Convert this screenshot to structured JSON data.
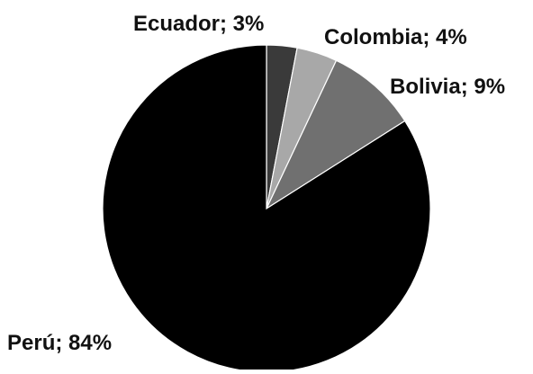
{
  "chart_data": {
    "type": "pie",
    "start_angle_deg": 0,
    "direction": "clockwise",
    "slices": [
      {
        "label": "Ecuador; 3%",
        "category": "Ecuador",
        "value": 3,
        "color": "#3a3a3a"
      },
      {
        "label": "Colombia; 4%",
        "category": "Colombia",
        "value": 4,
        "color": "#a8a8a8"
      },
      {
        "label": "Bolivia; 9%",
        "category": "Bolivia",
        "value": 9,
        "color": "#707070"
      },
      {
        "label": "Perú; 84%",
        "category": "Perú",
        "value": 84,
        "color": "#000000"
      }
    ],
    "slice_border_color": "#ffffff"
  }
}
